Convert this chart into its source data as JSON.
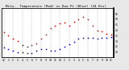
{
  "title": "  Milw.  Temperature (Red) vs Dew Pt (Blue) (24 Hrs)",
  "title_fontsize": 3.0,
  "bg_color": "#e8e8e8",
  "plot_bg": "#ffffff",
  "temp_color": "#dd0000",
  "dew_color": "#0000cc",
  "ylim": [
    15,
    60
  ],
  "hours": [
    0,
    1,
    2,
    3,
    4,
    5,
    6,
    7,
    8,
    9,
    10,
    11,
    12,
    13,
    14,
    15,
    16,
    17,
    18,
    19,
    20,
    21,
    22,
    23
  ],
  "temp": [
    38,
    35,
    32,
    30,
    null,
    null,
    26,
    28,
    32,
    36,
    42,
    44,
    46,
    47,
    44,
    48,
    50,
    52,
    50,
    44,
    40,
    39,
    37,
    36
  ],
  "dew": [
    24,
    23,
    21,
    20,
    null,
    null,
    19,
    21,
    23,
    23,
    21,
    21,
    23,
    25,
    27,
    29,
    32,
    33,
    33,
    33,
    32,
    33,
    33,
    34
  ],
  "vline_positions": [
    0,
    2,
    4,
    6,
    8,
    10,
    12,
    14,
    16,
    18,
    20,
    22
  ],
  "xtick_labels": [
    "12",
    "1",
    "2",
    "3",
    "4",
    "5",
    "6",
    "7",
    "8",
    "9",
    "10",
    "11",
    "12",
    "1",
    "2",
    "3",
    "4",
    "5",
    "6",
    "7",
    "8",
    "9",
    "10",
    "11"
  ],
  "right_yticks": [
    55,
    50,
    45,
    40,
    35,
    30,
    25,
    20
  ],
  "right_labels": [
    "55",
    "50",
    "45",
    "40",
    "35",
    "30",
    "25",
    "20"
  ]
}
